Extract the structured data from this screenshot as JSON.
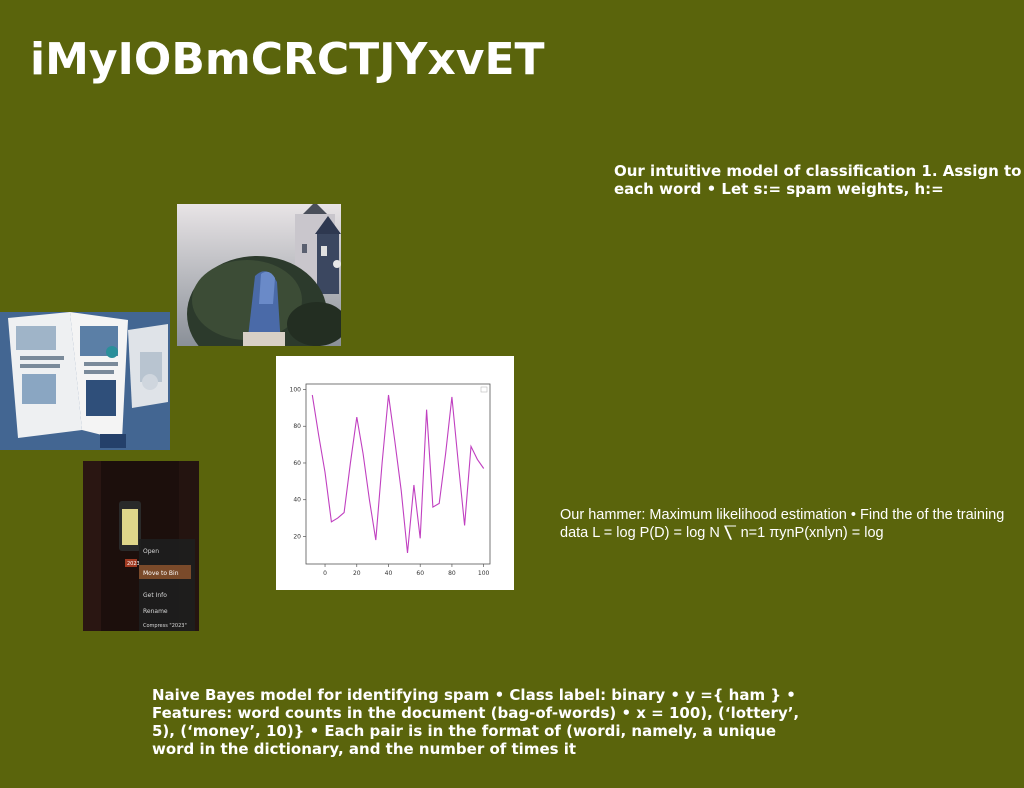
{
  "slide": {
    "title": "iMyIOBmCRCTJYxvET",
    "text_top": "Our intuitive model of classification 1. Assign to each word • Let s:= spam weights, h:=",
    "text_mid": "Our hammer: Maximum likelihood estimation • Find the of the training data L = log P(D) = log N ⎲ n=1 πynP(xnlyn) = log",
    "text_bottom": "Naive Bayes model for identifying spam • Class label: binary • y ={ ham } • Features: word counts in the document (bag-of-words) • x = 100), (‘lottery’, 5), (‘money’, 10)} • Each pair is in the format of (wordi, namely, a unique word in the dictionary, and the number of times it"
  },
  "photos": {
    "photo_castle": "castle-garden-photo",
    "photo_magazine": "magazine-desk-photo",
    "photo_menu": "context-menu-photo",
    "menu_items": [
      "Open",
      "Move to Bin",
      "Get Info",
      "Rename",
      "Compress \"2023\""
    ],
    "menu_badge": "2023"
  },
  "chart_data": {
    "type": "line",
    "x": [
      -8,
      -4,
      0,
      4,
      8,
      12,
      16,
      20,
      24,
      28,
      32,
      36,
      40,
      44,
      48,
      52,
      56,
      60,
      64,
      68,
      72,
      76,
      80,
      84,
      88,
      92,
      96,
      100
    ],
    "values": [
      97,
      75,
      55,
      28,
      30,
      33,
      60,
      85,
      65,
      40,
      18,
      60,
      97,
      72,
      45,
      11,
      48,
      19,
      89,
      36,
      38,
      65,
      96,
      60,
      26,
      69,
      62,
      57
    ],
    "series_color": "#c040c0",
    "x_ticks": [
      0,
      20,
      40,
      60,
      80,
      100
    ],
    "y_ticks": [
      20,
      40,
      60,
      80,
      100
    ],
    "xlim": [
      -12,
      104
    ],
    "ylim": [
      5,
      103
    ],
    "grid": false
  }
}
